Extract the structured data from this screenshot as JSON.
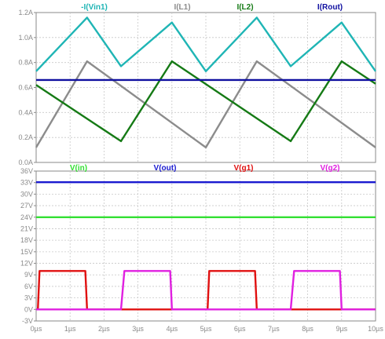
{
  "chart_data": [
    {
      "type": "line",
      "title": "",
      "xlabel": "",
      "ylabel": "",
      "xlim": [
        0,
        10
      ],
      "ylim": [
        0,
        1.2
      ],
      "x_ticks": [
        "0µs",
        "1µs",
        "2µs",
        "3µs",
        "4µs",
        "5µs",
        "6µs",
        "7µs",
        "8µs",
        "9µs",
        "10µs"
      ],
      "y_ticks": [
        "0.0A",
        "0.2A",
        "0.4A",
        "0.6A",
        "0.8A",
        "1.0A",
        "1.2A"
      ],
      "grid": true,
      "legend_position": "top",
      "series": [
        {
          "name": "-I(Vin1)",
          "color": "#1fb5b5",
          "x": [
            0,
            1.5,
            2.5,
            4,
            5,
            6.5,
            7.5,
            9,
            10
          ],
          "y": [
            0.73,
            1.16,
            0.77,
            1.12,
            0.73,
            1.16,
            0.77,
            1.12,
            0.73
          ]
        },
        {
          "name": "I(L1)",
          "color": "#8c8c8c",
          "x": [
            0,
            1.5,
            5,
            6.5,
            10
          ],
          "y": [
            0.12,
            0.81,
            0.12,
            0.81,
            0.12
          ]
        },
        {
          "name": "I(L2)",
          "color": "#157a15",
          "x": [
            0,
            2.5,
            4,
            7.5,
            9,
            10
          ],
          "y": [
            0.62,
            0.17,
            0.81,
            0.17,
            0.81,
            0.63
          ]
        },
        {
          "name": "I(Rout)",
          "color": "#1010a0",
          "x": [
            0,
            10
          ],
          "y": [
            0.66,
            0.66
          ]
        }
      ]
    },
    {
      "type": "line",
      "title": "",
      "xlabel": "",
      "ylabel": "",
      "xlim": [
        0,
        10
      ],
      "ylim": [
        -3,
        36
      ],
      "x_ticks": [
        "0µs",
        "1µs",
        "2µs",
        "3µs",
        "4µs",
        "5µs",
        "6µs",
        "7µs",
        "8µs",
        "9µs",
        "10µs"
      ],
      "y_ticks": [
        "-3V",
        "0V",
        "3V",
        "6V",
        "9V",
        "12V",
        "15V",
        "18V",
        "21V",
        "24V",
        "27V",
        "30V",
        "33V",
        "36V"
      ],
      "grid": true,
      "legend_position": "top",
      "series": [
        {
          "name": "V(in)",
          "color": "#33e033",
          "x": [
            0,
            10
          ],
          "y": [
            24,
            24
          ]
        },
        {
          "name": "V(out)",
          "color": "#1a1ad0",
          "x": [
            0,
            10
          ],
          "y": [
            33.1,
            33.1
          ]
        },
        {
          "name": "V(g1)",
          "color": "#e01010",
          "x": [
            0,
            0.05,
            0.1,
            1.45,
            1.5,
            5,
            5.05,
            5.1,
            6.45,
            6.5,
            10
          ],
          "y": [
            0,
            0,
            10,
            10,
            0,
            0,
            0,
            10,
            10,
            0,
            0
          ]
        },
        {
          "name": "V(g2)",
          "color": "#e020e0",
          "x": [
            0,
            2.5,
            2.6,
            3.95,
            4,
            7.5,
            7.6,
            8.95,
            9,
            10
          ],
          "y": [
            0,
            0,
            10,
            10,
            0,
            0,
            10,
            10,
            0,
            0
          ]
        }
      ]
    }
  ]
}
